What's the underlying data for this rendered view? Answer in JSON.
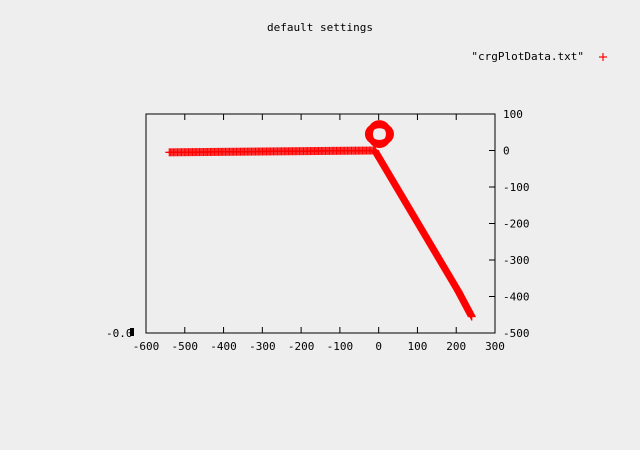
{
  "chart_data": {
    "type": "scatter",
    "title": "default settings",
    "xlim": [
      -600,
      300
    ],
    "ylim": [
      -500,
      100
    ],
    "x_ticks": [
      -600,
      -500,
      -400,
      -300,
      -200,
      -100,
      0,
      100,
      200,
      300
    ],
    "y_ticks": [
      100,
      0,
      -100,
      -200,
      -300,
      -400,
      -500
    ],
    "y_axis_side": "right",
    "left_axis_label": "-0.0",
    "legend_placement": "top-right",
    "grid": false,
    "series": [
      {
        "name": "\"crgPlotData.txt\"",
        "marker": "+",
        "color": "#ff0000",
        "segments": [
          {
            "from": [
              -540,
              -5
            ],
            "to": [
              -10,
              0
            ],
            "n": 150
          },
          {
            "from": [
              -10,
              0
            ],
            "to": [
              205,
              -385
            ],
            "n": 160
          },
          {
            "from": [
              205,
              -385
            ],
            "to": [
              240,
              -455
            ],
            "n": 30
          }
        ],
        "loop": {
          "center": [
            2,
            45
          ],
          "radius": 27,
          "n": 70
        }
      }
    ]
  }
}
